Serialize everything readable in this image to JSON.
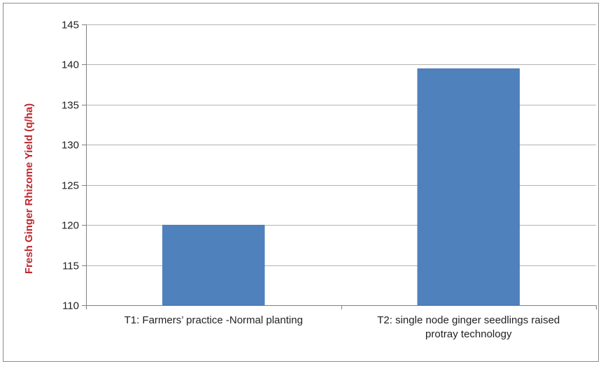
{
  "chart_data": {
    "type": "bar",
    "categories": [
      [
        "T1:  Farmers’ practice -Normal planting"
      ],
      [
        "T2:   single node ginger seedlings raised",
        "protray technology"
      ]
    ],
    "values": [
      120,
      139.5
    ],
    "ylabel": "Fresh Ginger Rhizome Yield (q/ha)",
    "ylim": [
      110,
      145
    ],
    "yticks": [
      110,
      115,
      120,
      125,
      130,
      135,
      140,
      145
    ],
    "grid": true,
    "colors": {
      "bar": "#4f81bd",
      "bar_edge": "#3f6ea6",
      "grid": "#b3b3b3",
      "axis": "#808080",
      "ylabel": "#c0272d"
    }
  }
}
